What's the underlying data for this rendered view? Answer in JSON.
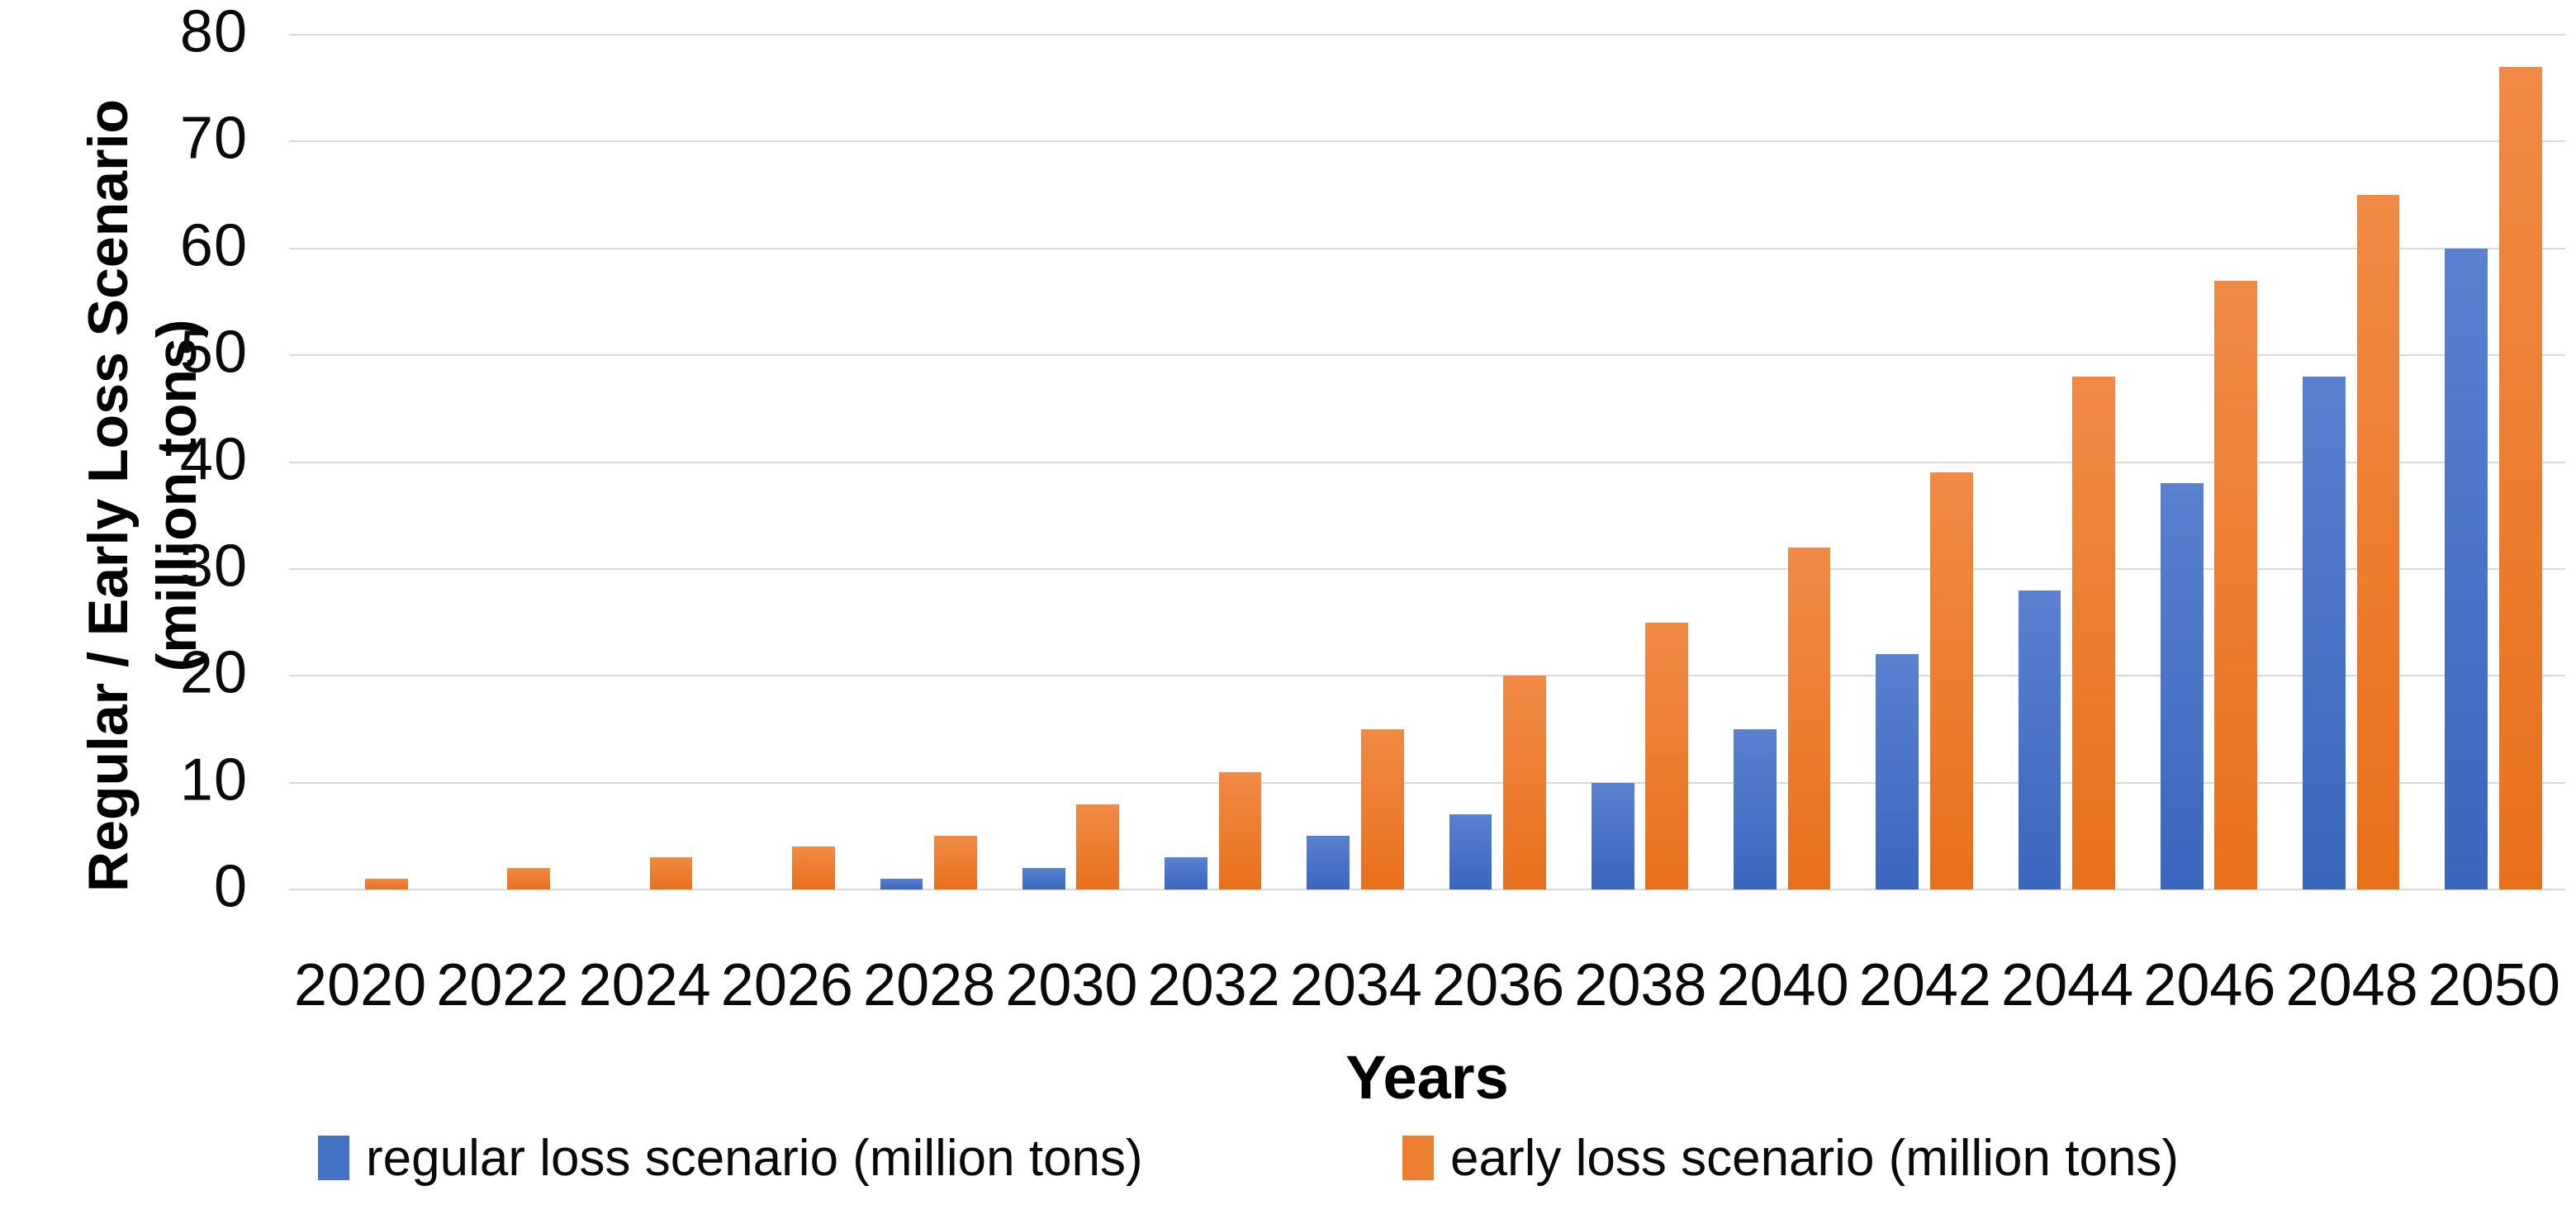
{
  "chart_data": {
    "type": "bar",
    "title": "",
    "categories": [
      "2020",
      "2022",
      "2024",
      "2026",
      "2028",
      "2030",
      "2032",
      "2034",
      "2036",
      "2038",
      "2040",
      "2042",
      "2044",
      "2046",
      "2048",
      "2050"
    ],
    "series": [
      {
        "name": "regular loss scenario (million tons)",
        "color": "#4472C4",
        "values": [
          0,
          0,
          0,
          0,
          1,
          2,
          3,
          5,
          7,
          10,
          15,
          22,
          28,
          38,
          48,
          60
        ]
      },
      {
        "name": "early loss scenario (million tons)",
        "color": "#ED7D31",
        "values": [
          1,
          2,
          3,
          4,
          5,
          8,
          11,
          15,
          20,
          25,
          32,
          39,
          48,
          57,
          65,
          77
        ]
      }
    ],
    "xlabel": "Years",
    "ylabel_line1": "Regular / Early Loss Scenario",
    "ylabel_line2": "(million tons)",
    "ylim": [
      0,
      80
    ],
    "ytick_step": 10,
    "yticks": [
      80,
      70,
      60,
      50,
      40,
      30,
      20,
      10,
      0
    ],
    "grid": true,
    "gridline_color": "#d9d9d9",
    "legend_position": "bottom"
  }
}
